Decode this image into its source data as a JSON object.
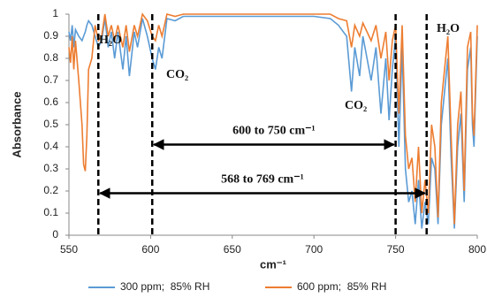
{
  "chart_data": {
    "type": "line",
    "x_label": "cm⁻¹",
    "y_label": "Absorbance",
    "x": [
      550,
      551,
      552,
      553,
      554,
      556,
      558,
      559,
      560,
      561,
      562,
      564,
      566,
      568,
      570,
      572,
      574,
      576,
      578,
      580,
      583,
      585,
      587,
      590,
      592,
      595,
      598,
      601,
      603,
      605,
      607,
      610,
      615,
      620,
      640,
      680,
      700,
      710,
      715,
      720,
      723,
      725,
      728,
      730,
      735,
      738,
      741,
      744,
      746,
      748,
      750,
      752,
      754,
      756,
      758,
      760,
      762,
      764,
      766,
      768,
      770,
      772,
      774,
      776,
      778,
      780,
      782,
      784,
      786,
      788,
      790,
      792,
      794,
      796,
      797,
      798,
      800
    ],
    "series": [
      {
        "name": "300 ppm;  85% RH",
        "color": "#5b9bd5",
        "values": [
          0.92,
          0.88,
          0.95,
          0.85,
          0.93,
          0.9,
          0.88,
          0.9,
          0.92,
          0.95,
          0.97,
          0.95,
          0.9,
          0.85,
          0.88,
          0.98,
          0.85,
          0.92,
          0.8,
          0.92,
          0.75,
          0.9,
          0.72,
          0.92,
          0.85,
          0.98,
          0.9,
          0.8,
          0.75,
          0.85,
          0.8,
          0.98,
          0.97,
          0.99,
          0.99,
          0.99,
          0.99,
          0.98,
          0.95,
          0.9,
          0.65,
          0.85,
          0.72,
          0.9,
          0.7,
          0.85,
          0.55,
          0.8,
          0.52,
          0.75,
          0.9,
          0.4,
          0.85,
          0.3,
          0.15,
          0.2,
          0.05,
          0.25,
          0.03,
          0.15,
          0.05,
          0.35,
          0.3,
          0.05,
          0.5,
          0.65,
          0.8,
          0.35,
          0.03,
          0.4,
          0.55,
          0.15,
          0.75,
          0.85,
          0.5,
          0.4,
          0.9
        ]
      },
      {
        "name": "600 ppm;  85% RH",
        "color": "#ed7d31",
        "values": [
          0.85,
          0.78,
          0.9,
          0.75,
          0.88,
          0.7,
          0.5,
          0.32,
          0.29,
          0.45,
          0.75,
          0.8,
          0.95,
          0.88,
          0.9,
          1,
          0.9,
          0.95,
          0.88,
          0.95,
          0.85,
          0.95,
          0.83,
          0.95,
          0.9,
          1,
          0.97,
          0.9,
          0.88,
          0.95,
          0.9,
          1,
          0.99,
          1,
          1,
          1,
          1,
          1,
          0.98,
          0.97,
          0.85,
          0.95,
          0.9,
          0.96,
          0.88,
          0.95,
          0.8,
          0.92,
          0.7,
          0.88,
          0.95,
          0.55,
          0.95,
          0.45,
          0.3,
          0.35,
          0.15,
          0.4,
          0.1,
          0.25,
          0.1,
          0.5,
          0.4,
          0.08,
          0.6,
          0.75,
          0.9,
          0.45,
          0.05,
          0.5,
          0.65,
          0.2,
          0.85,
          0.92,
          0.55,
          0.45,
          0.95
        ]
      }
    ],
    "xlim": [
      550,
      800
    ],
    "ylim": [
      0,
      1
    ],
    "xticks": [
      550,
      600,
      650,
      700,
      750,
      800
    ],
    "yticks": [
      0,
      0.1,
      0.2,
      0.3,
      0.4,
      0.5,
      0.6,
      0.7,
      0.8,
      0.9,
      1
    ],
    "vlines": [
      568,
      601,
      750,
      769
    ],
    "arrows": [
      {
        "label": "600 to 750 cm⁻¹",
        "from": 601,
        "to": 750,
        "y": 0.41
      },
      {
        "label": "568 to 769 cm⁻¹",
        "from": 568,
        "to": 769,
        "y": 0.19
      }
    ],
    "annotations": [
      "H₂O",
      "H₂O",
      "CO₂",
      "CO₂"
    ],
    "legend": "bottom"
  }
}
